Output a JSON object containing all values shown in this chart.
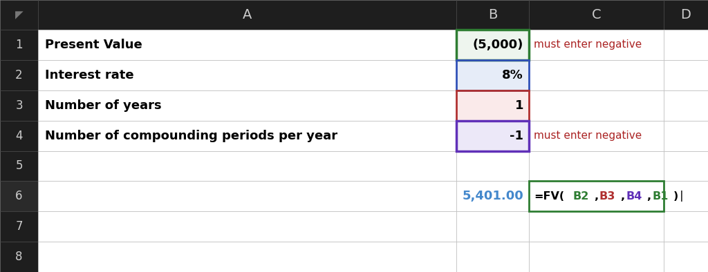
{
  "header_bg": "#1e1e1e",
  "header_text_color": "#cccccc",
  "grid_color": "#bbbbbb",
  "col_labels": [
    "A",
    "B",
    "C",
    "D"
  ],
  "row_labels": [
    "1",
    "2",
    "3",
    "4",
    "5",
    "6",
    "7",
    "8"
  ],
  "rows": [
    {
      "a": "Present Value",
      "b": "(5,000)",
      "c": "must enter negative",
      "d": ""
    },
    {
      "a": "Interest rate",
      "b": "8%",
      "c": "",
      "d": ""
    },
    {
      "a": "Number of years",
      "b": "1",
      "c": "",
      "d": ""
    },
    {
      "a": "Number of compounding periods per year",
      "b": "-1",
      "c": "must enter negative",
      "d": ""
    },
    {
      "a": "",
      "b": "",
      "c": "",
      "d": ""
    },
    {
      "a": "",
      "b": "5,401.00",
      "c": "=FV(B2,B3,B4,B1)",
      "d": ""
    },
    {
      "a": "",
      "b": "",
      "c": "",
      "d": ""
    },
    {
      "a": "",
      "b": "",
      "c": "",
      "d": ""
    }
  ],
  "cell_bg_b1": "#eef5ee",
  "cell_bg_b2": "#e6ecf8",
  "cell_bg_b3": "#faeaea",
  "cell_bg_b4": "#ece8f8",
  "border_b1": "#2e7d32",
  "border_b2": "#3050b8",
  "border_b3": "#b03030",
  "border_b4": "#6030b8",
  "border_c6": "#2e7d32",
  "text_color_c_note": "#aa2222",
  "text_color_b6": "#4488cc",
  "formula_parts": [
    [
      "=FV(",
      "#000000"
    ],
    [
      "B2",
      "#2e7d32"
    ],
    [
      ",",
      "#000000"
    ],
    [
      "B3",
      "#b03030"
    ],
    [
      ",",
      "#000000"
    ],
    [
      "B4",
      "#6030b8"
    ],
    [
      ",",
      "#000000"
    ],
    [
      "B1",
      "#2e7d32"
    ],
    [
      ")",
      "#000000"
    ],
    [
      "|",
      "#333333"
    ]
  ]
}
